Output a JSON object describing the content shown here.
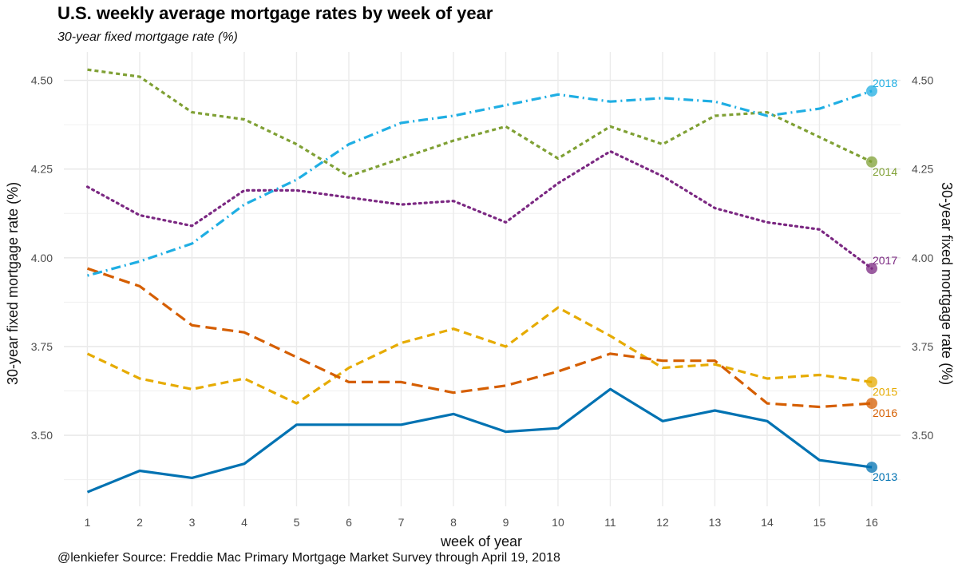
{
  "chart_data": {
    "type": "line",
    "title": "U.S. weekly average mortgage rates by week of year",
    "subtitle": "30-year fixed mortgage rate (%)",
    "xlabel": "week of year",
    "ylabel": "30-year fixed mortgage rate (%)",
    "ylabel_right": "30-year fixed mortgage rate (%)",
    "caption": "@lenkiefer Source: Freddie Mac Primary Mortgage Market Survey through April 19, 2018",
    "x": [
      1,
      2,
      3,
      4,
      5,
      6,
      7,
      8,
      9,
      10,
      11,
      12,
      13,
      14,
      15,
      16
    ],
    "xlim": [
      0.55,
      16.55
    ],
    "ylim": [
      3.3,
      4.58
    ],
    "yticks": [
      "3.50",
      "3.75",
      "4.00",
      "4.25",
      "4.50"
    ],
    "grid": true,
    "legend": "labels at line ends (right)",
    "series": [
      {
        "name": "2013",
        "color": "#0072B2",
        "dash": "solid",
        "values": [
          3.34,
          3.4,
          3.38,
          3.42,
          3.53,
          3.53,
          3.53,
          3.56,
          3.51,
          3.52,
          3.63,
          3.54,
          3.57,
          3.54,
          3.43,
          3.41
        ]
      },
      {
        "name": "2014",
        "color": "#7FA034",
        "dash": "short-dash",
        "values": [
          4.53,
          4.51,
          4.41,
          4.39,
          4.32,
          4.23,
          4.28,
          4.33,
          4.37,
          4.28,
          4.37,
          4.32,
          4.4,
          4.41,
          4.34,
          4.27
        ]
      },
      {
        "name": "2015",
        "color": "#E6AB02",
        "dash": "dashed",
        "values": [
          3.73,
          3.66,
          3.63,
          3.66,
          3.59,
          3.69,
          3.76,
          3.8,
          3.75,
          3.86,
          3.78,
          3.69,
          3.7,
          3.66,
          3.67,
          3.65
        ]
      },
      {
        "name": "2016",
        "color": "#D55E00",
        "dash": "long-dash",
        "values": [
          3.97,
          3.92,
          3.81,
          3.79,
          3.72,
          3.65,
          3.65,
          3.62,
          3.64,
          3.68,
          3.73,
          3.71,
          3.71,
          3.59,
          3.58,
          3.59
        ]
      },
      {
        "name": "2017",
        "color": "#7B2882",
        "dash": "dotted",
        "values": [
          4.2,
          4.12,
          4.09,
          4.19,
          4.19,
          4.17,
          4.15,
          4.16,
          4.1,
          4.21,
          4.3,
          4.23,
          4.14,
          4.1,
          4.08,
          3.97
        ]
      },
      {
        "name": "2018",
        "color": "#1FAEE3",
        "dash": "dot-dash",
        "values": [
          3.95,
          3.99,
          4.04,
          4.15,
          4.22,
          4.32,
          4.38,
          4.4,
          4.43,
          4.46,
          4.44,
          4.45,
          4.44,
          4.4,
          4.42,
          4.47
        ]
      }
    ]
  }
}
